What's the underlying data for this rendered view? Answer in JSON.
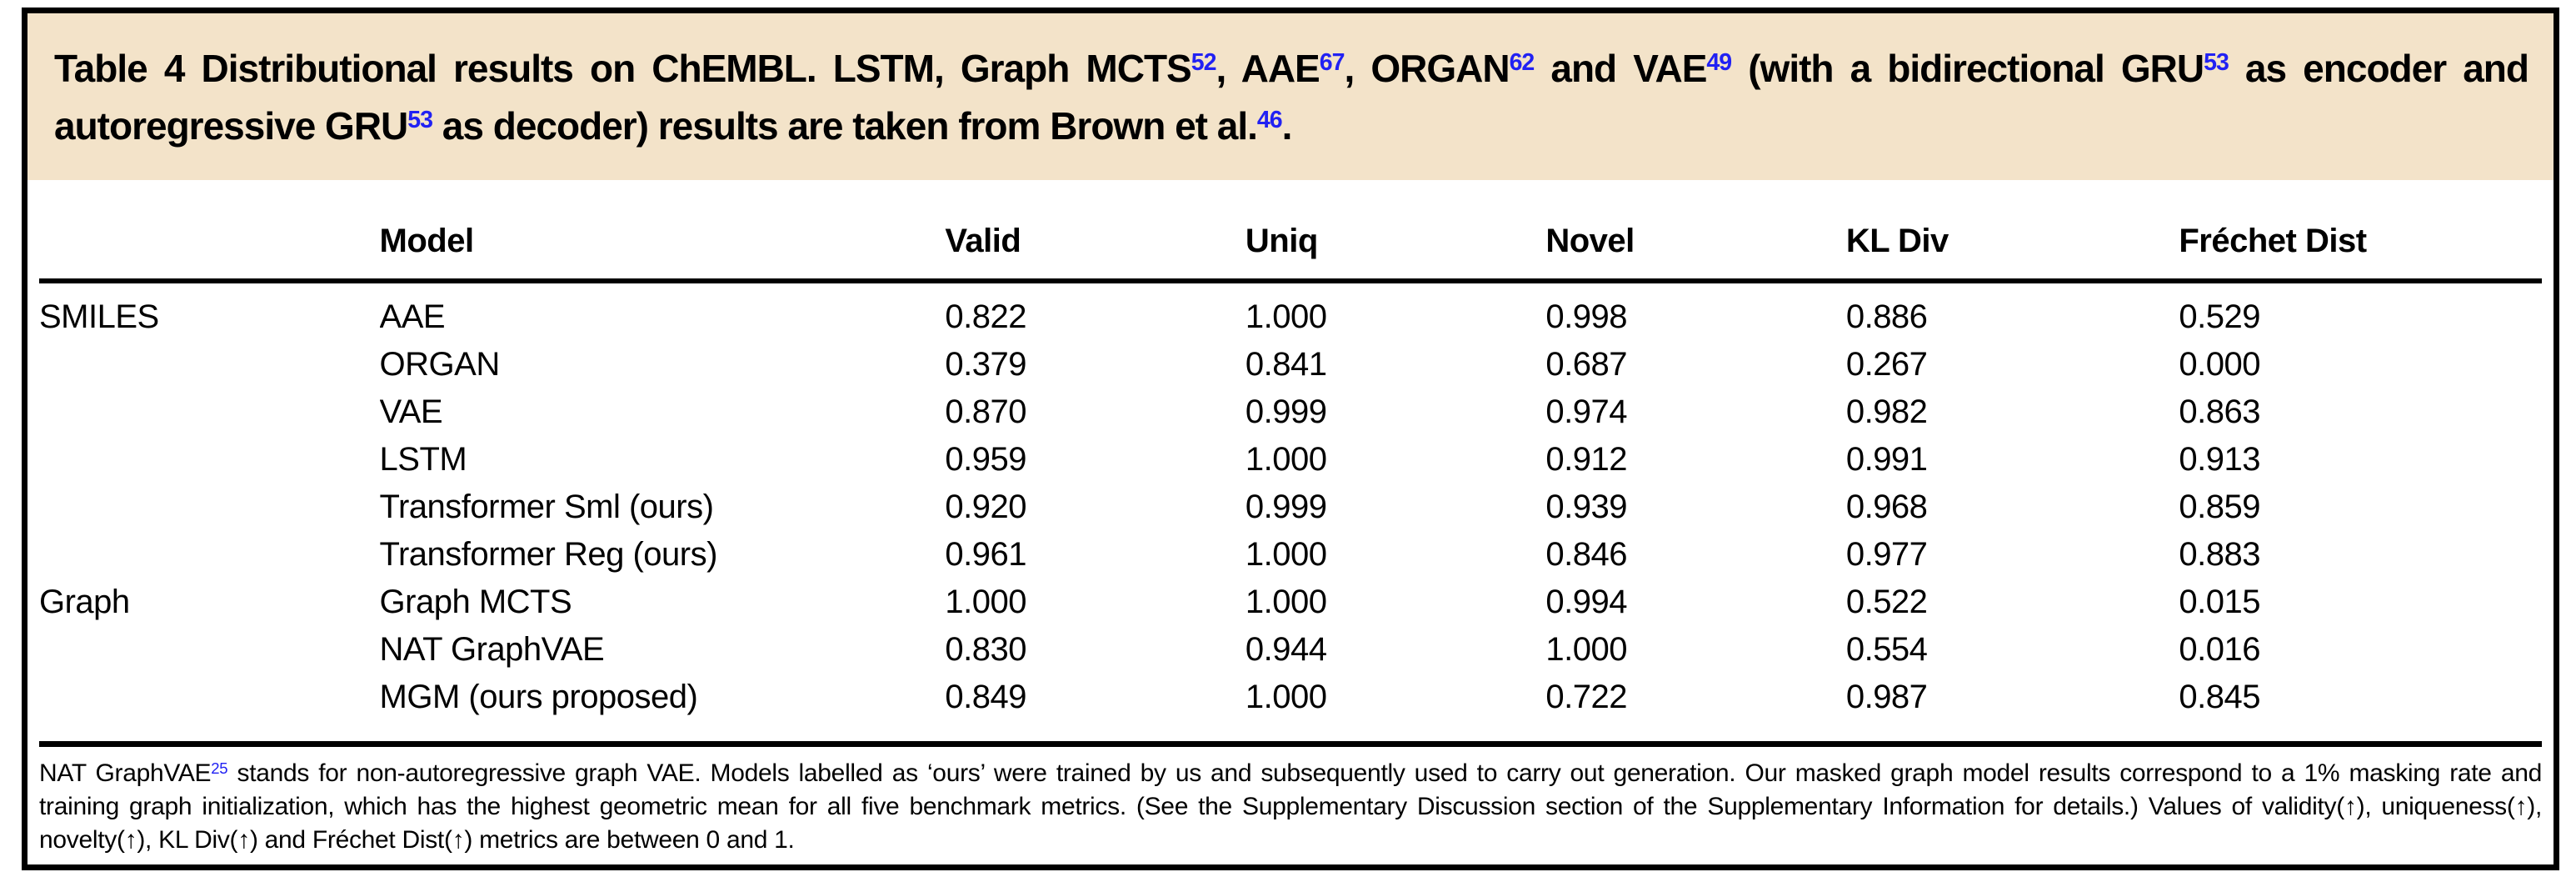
{
  "colors": {
    "caption_bg": "#f3e3c9",
    "reference_blue": "#2121f3",
    "frame_border": "#000000"
  },
  "caption": {
    "segments": [
      {
        "text": "Table 4 Distributional results on ChEMBL. LSTM, Graph MCTS"
      },
      {
        "text": "52",
        "sup": true
      },
      {
        "text": ", AAE"
      },
      {
        "text": "67",
        "sup": true
      },
      {
        "text": ", ORGAN"
      },
      {
        "text": "62",
        "sup": true
      },
      {
        "text": " and VAE"
      },
      {
        "text": "49",
        "sup": true
      },
      {
        "text": " (with a bidirectional GRU"
      },
      {
        "text": "53",
        "sup": true
      },
      {
        "text": " as encoder and autoregressive GRU"
      },
      {
        "text": "53",
        "sup": true
      },
      {
        "text": " as decoder) results are taken from Brown et al."
      },
      {
        "text": "46",
        "sup": true
      },
      {
        "text": "."
      }
    ]
  },
  "table": {
    "columns": [
      "",
      "Model",
      "Valid",
      "Uniq",
      "Novel",
      "KL Div",
      "Fréchet Dist"
    ],
    "rows": [
      {
        "group": "SMILES",
        "model": "AAE",
        "valid": "0.822",
        "uniq": "1.000",
        "novel": "0.998",
        "kl_div": "0.886",
        "frechet_dist": "0.529"
      },
      {
        "group": "",
        "model": "ORGAN",
        "valid": "0.379",
        "uniq": "0.841",
        "novel": "0.687",
        "kl_div": "0.267",
        "frechet_dist": "0.000"
      },
      {
        "group": "",
        "model": "VAE",
        "valid": "0.870",
        "uniq": "0.999",
        "novel": "0.974",
        "kl_div": "0.982",
        "frechet_dist": "0.863"
      },
      {
        "group": "",
        "model": "LSTM",
        "valid": "0.959",
        "uniq": "1.000",
        "novel": "0.912",
        "kl_div": "0.991",
        "frechet_dist": "0.913"
      },
      {
        "group": "",
        "model": "Transformer Sml (ours)",
        "valid": "0.920",
        "uniq": "0.999",
        "novel": "0.939",
        "kl_div": "0.968",
        "frechet_dist": "0.859"
      },
      {
        "group": "",
        "model": "Transformer Reg (ours)",
        "valid": "0.961",
        "uniq": "1.000",
        "novel": "0.846",
        "kl_div": "0.977",
        "frechet_dist": "0.883"
      },
      {
        "group": "Graph",
        "model": "Graph MCTS",
        "valid": "1.000",
        "uniq": "1.000",
        "novel": "0.994",
        "kl_div": "0.522",
        "frechet_dist": "0.015"
      },
      {
        "group": "",
        "model": "NAT GraphVAE",
        "valid": "0.830",
        "uniq": "0.944",
        "novel": "1.000",
        "kl_div": "0.554",
        "frechet_dist": "0.016"
      },
      {
        "group": "",
        "model": "MGM (ours proposed)",
        "valid": "0.849",
        "uniq": "1.000",
        "novel": "0.722",
        "kl_div": "0.987",
        "frechet_dist": "0.845"
      }
    ]
  },
  "footnote": {
    "segments": [
      {
        "text": "NAT GraphVAE"
      },
      {
        "text": "25",
        "sup": true
      },
      {
        "text": " stands for non-autoregressive graph VAE. Models labelled as ‘ours’ were trained by us and subsequently used to carry out generation. Our masked graph model results correspond to a 1% masking rate and training graph initialization, which has the highest geometric mean for all five benchmark metrics. (See the Supplementary Discussion section of the Supplementary Information for details.) Values of validity(↑), uniqueness(↑), novelty(↑), KL Div(↑) and Fréchet Dist(↑) metrics are between 0 and 1."
      }
    ]
  }
}
